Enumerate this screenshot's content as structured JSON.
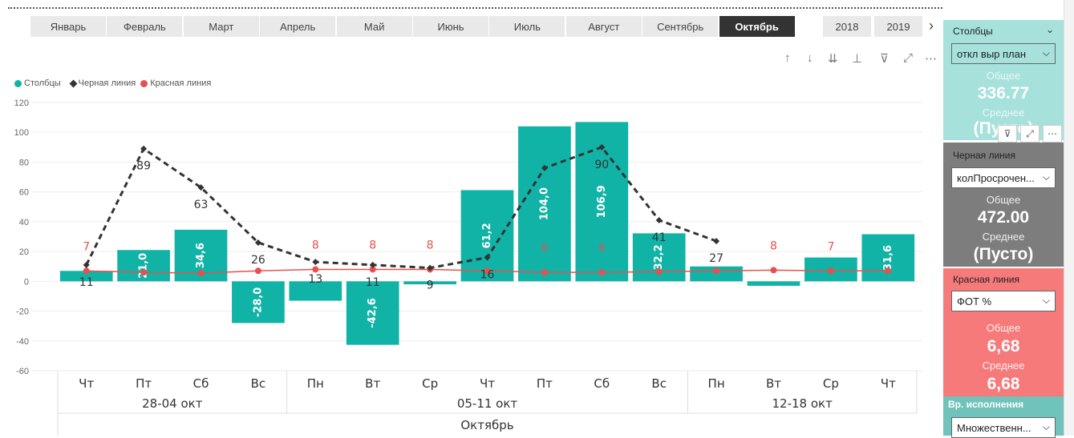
{
  "months": [
    "Январь",
    "Февраль",
    "Март",
    "Апрель",
    "Май",
    "Июнь",
    "Июль",
    "Август",
    "Сентябрь",
    "Октябрь"
  ],
  "active_month": "Октябрь",
  "years": [
    "2018",
    "2019"
  ],
  "legend": {
    "series1": "Столбцы",
    "series2": "Черная линия",
    "series3": "Красная линия"
  },
  "colors": {
    "teal": "#10b3a6",
    "black": "#333333",
    "red": "#e8504f",
    "active_month_bg": "#333333"
  },
  "chart_data": {
    "type": "bar",
    "categories": [
      "Чт",
      "Пт",
      "Сб",
      "Вс",
      "Пн",
      "Вт",
      "Ср",
      "Чт",
      "Пт",
      "Сб",
      "Вс",
      "Пн",
      "Вт",
      "Ср",
      "Чт"
    ],
    "weeks": [
      {
        "label": "28-04 окт",
        "span": 4
      },
      {
        "label": "05-11 окт",
        "span": 7
      },
      {
        "label": "12-18 окт",
        "span": 4
      }
    ],
    "month_label": "Октябрь",
    "ylim": [
      -60,
      120
    ],
    "yticks": [
      -60,
      -40,
      -20,
      0,
      20,
      40,
      60,
      80,
      100,
      120
    ],
    "series": [
      {
        "name": "Столбцы",
        "type": "bar",
        "values": [
          7,
          21.0,
          34.6,
          -28.0,
          -13,
          -42.6,
          -2,
          61.2,
          104.0,
          106.9,
          32.2,
          10,
          -3,
          16,
          31.6
        ],
        "labels": [
          "",
          "21,0",
          "34,6",
          "-28,0",
          "",
          "-42,6",
          "",
          "61,2",
          "104,0",
          "106,9",
          "32,2",
          "",
          "",
          "",
          "31,6"
        ]
      },
      {
        "name": "Черная линия",
        "type": "line",
        "values": [
          11,
          89,
          63,
          26,
          13,
          11,
          9,
          16,
          76,
          90,
          41,
          27,
          null,
          null,
          null
        ],
        "labels": [
          "11",
          "89",
          "63",
          "26",
          "13",
          "11",
          "9",
          "16",
          "",
          "90",
          "41",
          "27",
          "",
          "",
          ""
        ]
      },
      {
        "name": "Красная линия",
        "type": "line",
        "values": [
          7,
          6,
          5.5,
          7,
          8,
          8,
          8,
          7,
          6,
          6,
          6.5,
          7,
          7.5,
          7,
          7
        ],
        "labels": [
          "7",
          "",
          "",
          "",
          "8",
          "8",
          "8",
          "",
          "6",
          "6",
          "",
          "",
          "8",
          "7",
          ""
        ]
      }
    ]
  },
  "panel": {
    "stolbtsy": {
      "title": "Столбцы",
      "select": "откл выр план",
      "total_label": "Общее",
      "total": "336.77",
      "avg_label": "Среднее",
      "avg": "(Пусто)"
    },
    "chernaya": {
      "title": "Черная линия",
      "select": "колПросрочен...",
      "total_label": "Общее",
      "total": "472.00",
      "avg_label": "Среднее",
      "avg": "(Пусто)"
    },
    "krasnaya": {
      "title": "Красная линия",
      "select": "ФОТ %",
      "total_label": "Общее",
      "total": "6,68",
      "avg_label": "Среднее",
      "avg": "6,68"
    },
    "vr": {
      "title": "Вр. исполнения",
      "select": "Множественн..."
    }
  }
}
